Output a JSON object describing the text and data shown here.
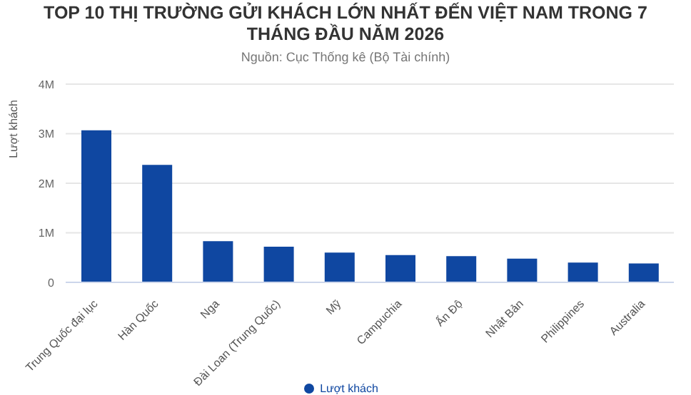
{
  "chart_data": {
    "type": "bar",
    "title": "TOP 10 THỊ TRƯỜNG GỬI KHÁCH LỚN NHẤT ĐẾN VIỆT NAM TRONG 7 THÁNG ĐẦU NĂM 2026",
    "subtitle": "Nguồn: Cục Thống kê (Bộ Tài chính)",
    "ylabel": "Lượt khách",
    "categories": [
      "Trung Quốc đại lục",
      "Hàn Quốc",
      "Nga",
      "Đài Loan (Trung Quốc)",
      "Mỹ",
      "Campuchia",
      "Ấn Độ",
      "Nhật Bản",
      "Philippines",
      "Australia"
    ],
    "series": [
      {
        "name": "Lượt khách",
        "color": "#0f47a1",
        "values": [
          3070000,
          2370000,
          830000,
          720000,
          600000,
          550000,
          530000,
          480000,
          400000,
          380000
        ]
      }
    ],
    "ylim": [
      0,
      4000000
    ],
    "yticks": [
      {
        "value": 0,
        "label": "0"
      },
      {
        "value": 1000000,
        "label": "1M"
      },
      {
        "value": 2000000,
        "label": "2M"
      },
      {
        "value": 3000000,
        "label": "3M"
      },
      {
        "value": 4000000,
        "label": "4M"
      }
    ],
    "grid": "y",
    "legend": "bottom"
  }
}
